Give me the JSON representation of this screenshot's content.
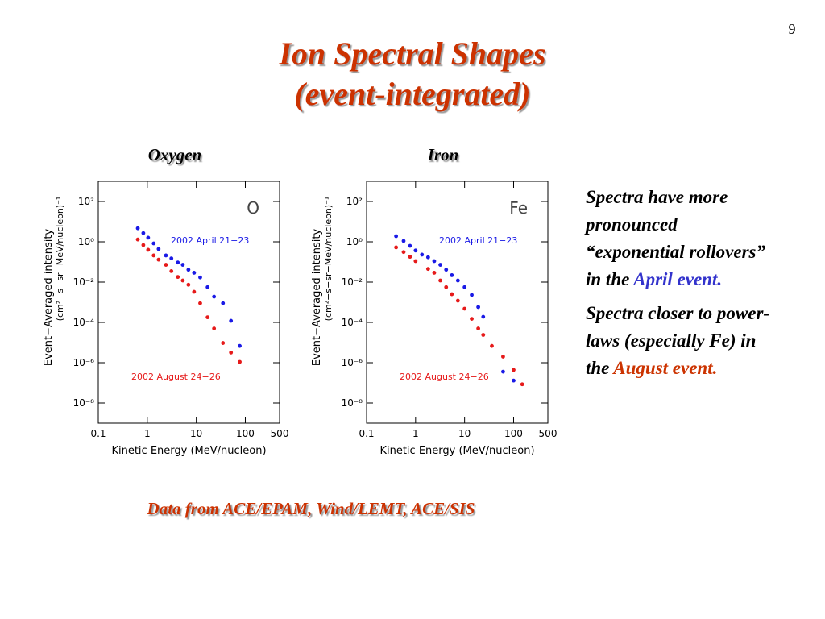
{
  "page_number": "9",
  "title": [
    "Ion Spectral Shapes",
    "(event-integrated)"
  ],
  "notes": [
    {
      "text": "Spectra have more pronounced “exponential rollovers” in the",
      "highlight": "April event."
    },
    {
      "text": "Spectra closer to power-laws (especially Fe) in the",
      "highlight": "August event."
    }
  ],
  "footer": "Data from ACE/EPAM, Wind/LEMT, ACE/SIS",
  "chart_data": [
    {
      "type": "scatter",
      "title": "Oxygen",
      "label": "O",
      "xlabel": "Kinetic Energy (MeV/nucleon)",
      "ylabel": "Event−Averaged intensity",
      "ylabel_units": "(cm²−s−sr−MeV/nucleon)⁻¹",
      "xscale": "log",
      "yscale": "log",
      "xlim": [
        0.1,
        500
      ],
      "ylim": [
        1e-09,
        1000
      ],
      "xticks": [
        0.1,
        1,
        10,
        100,
        500
      ],
      "yticks": [
        {
          "value": 100,
          "label": "10²"
        },
        {
          "value": 1,
          "label": "10⁰"
        },
        {
          "value": 0.01,
          "label": "10⁻²"
        },
        {
          "value": 0.0001,
          "label": "10⁻⁴"
        },
        {
          "value": 1e-06,
          "label": "10⁻⁶"
        },
        {
          "value": 1e-08,
          "label": "10⁻⁸"
        }
      ],
      "series": [
        {
          "name": "2002 April 21−23",
          "color": "#1a1ae6",
          "x": [
            0.64,
            0.83,
            1.04,
            1.35,
            1.7,
            2.4,
            3.1,
            4.2,
            5.3,
            6.9,
            9.0,
            12,
            17,
            23,
            35,
            51,
            77
          ],
          "values": [
            4.7,
            2.7,
            1.6,
            0.83,
            0.44,
            0.21,
            0.15,
            0.094,
            0.072,
            0.041,
            0.029,
            0.017,
            0.0056,
            0.0019,
            0.0009,
            0.00012,
            6.8e-06
          ]
        },
        {
          "name": "2002 August 24−26",
          "color": "#e61a1a",
          "x": [
            0.64,
            0.83,
            1.04,
            1.35,
            1.7,
            2.4,
            3.1,
            4.2,
            5.3,
            6.9,
            9.0,
            12,
            17,
            23,
            35,
            51,
            77
          ],
          "values": [
            1.3,
            0.69,
            0.4,
            0.21,
            0.13,
            0.072,
            0.035,
            0.018,
            0.012,
            0.0074,
            0.0033,
            0.0009,
            0.00018,
            5e-05,
            9.5e-06,
            3.2e-06,
            1.1e-06
          ]
        }
      ]
    },
    {
      "type": "scatter",
      "title": "Iron",
      "label": "Fe",
      "xlabel": "Kinetic Energy (MeV/nucleon)",
      "ylabel": "Event−Averaged intensity",
      "ylabel_units": "(cm²−s−sr−MeV/nucleon)⁻¹",
      "xscale": "log",
      "yscale": "log",
      "xlim": [
        0.1,
        500
      ],
      "ylim": [
        1e-09,
        1000
      ],
      "xticks": [
        0.1,
        1,
        10,
        100,
        500
      ],
      "yticks": [
        {
          "value": 100,
          "label": "10²"
        },
        {
          "value": 1,
          "label": "10⁰"
        },
        {
          "value": 0.01,
          "label": "10⁻²"
        },
        {
          "value": 0.0001,
          "label": "10⁻⁴"
        },
        {
          "value": 1e-06,
          "label": "10⁻⁶"
        },
        {
          "value": 1e-08,
          "label": "10⁻⁸"
        }
      ],
      "series": [
        {
          "name": "2002 April 21−23",
          "color": "#1a1ae6",
          "x": [
            0.4,
            0.57,
            0.77,
            1,
            1.35,
            1.8,
            2.4,
            3.2,
            4.2,
            5.5,
            7.3,
            10,
            14,
            19,
            24,
            61,
            100
          ],
          "values": [
            1.9,
            1.1,
            0.63,
            0.37,
            0.23,
            0.17,
            0.11,
            0.072,
            0.041,
            0.022,
            0.012,
            0.0056,
            0.0023,
            0.00058,
            0.00019,
            3.6e-07,
            1.3e-07
          ]
        },
        {
          "name": "2002 August 24−26",
          "color": "#e61a1a",
          "x": [
            0.4,
            0.57,
            0.77,
            1,
            1.8,
            2.4,
            3.2,
            4.2,
            5.5,
            7.3,
            10,
            14,
            19,
            24,
            36,
            61,
            100,
            150
          ],
          "values": [
            0.53,
            0.31,
            0.18,
            0.11,
            0.045,
            0.029,
            0.012,
            0.0056,
            0.0025,
            0.0012,
            0.00048,
            0.00015,
            5e-05,
            2.4e-05,
            6.8e-06,
            2e-06,
            4.4e-07,
            8.5e-08
          ]
        }
      ]
    }
  ]
}
